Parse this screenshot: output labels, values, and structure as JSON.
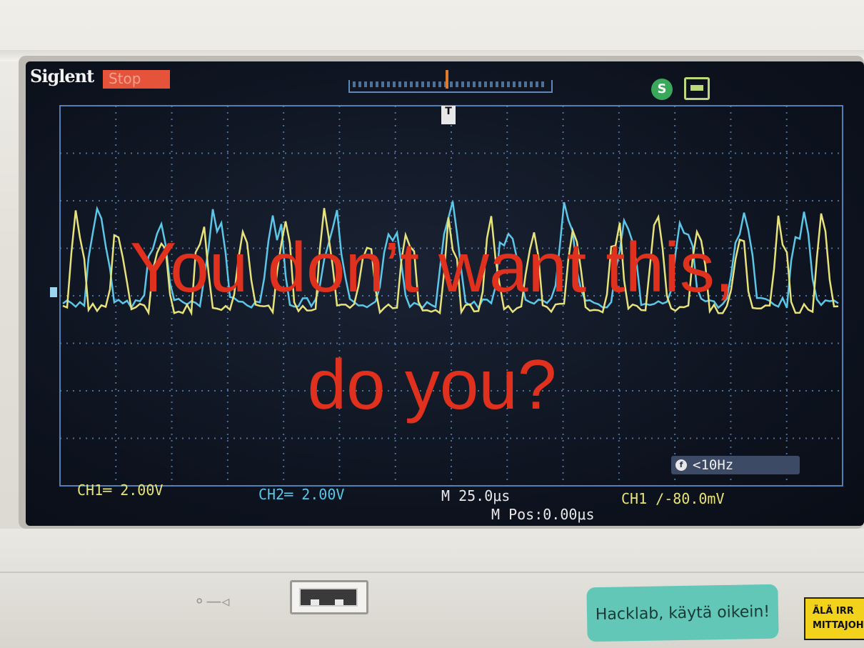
{
  "scope": {
    "brand": "Siglent",
    "run_status": "Stop",
    "trigger_marker": "T",
    "status_icon": "S",
    "frequency_readout": "<10Hz",
    "frequency_icon": "f",
    "ch1_scale": "CH1═ 2.00V",
    "ch2_scale": "CH2═ 2.00V",
    "timebase": "M 25.0μs",
    "horizontal_position": "M Pos:0.00μs",
    "trigger_info": "CH1 ∕-80.0mV",
    "channel_colors": {
      "ch1": "#e7e27a",
      "ch2": "#5cc6e8"
    }
  },
  "overlay": {
    "line1": "You don’t want this,",
    "line2": "do you?"
  },
  "device": {
    "sticker_text": "Hacklab, käytä oikein!",
    "warning_line1": "ÄLÄ IRR",
    "warning_line2": "MITTAJOH"
  }
}
